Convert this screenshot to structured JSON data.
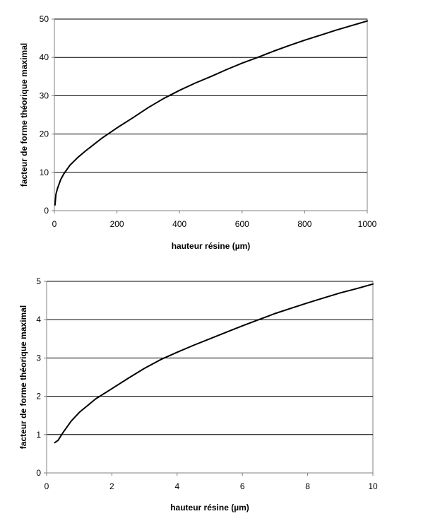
{
  "chart_data": [
    {
      "type": "line",
      "title": "",
      "xlabel": "hauteur résine (µm)",
      "ylabel": "facteur de forme théorique maximal",
      "xlim": [
        0,
        1000
      ],
      "ylim": [
        0,
        50
      ],
      "xticks": [
        0,
        200,
        400,
        600,
        800,
        1000
      ],
      "yticks": [
        0,
        10,
        20,
        30,
        40,
        50
      ],
      "grid": "horizontal",
      "legend": "none",
      "series": [
        {
          "x": [
            2,
            5,
            10,
            20,
            30,
            50,
            75,
            100,
            150,
            200,
            250,
            300,
            350,
            400,
            450,
            500,
            550,
            600,
            650,
            700,
            750,
            800,
            850,
            900,
            950,
            1000
          ],
          "y": [
            1.5,
            4.3,
            5.8,
            8.1,
            9.6,
            11.9,
            13.9,
            15.6,
            18.8,
            21.6,
            24.2,
            26.9,
            29.3,
            31.4,
            33.3,
            35.0,
            36.8,
            38.5,
            40.0,
            41.6,
            43.1,
            44.5,
            45.8,
            47.1,
            48.3,
            49.5
          ]
        }
      ],
      "color": "#000000"
    },
    {
      "type": "line",
      "title": "",
      "xlabel": "hauteur résine (µm)",
      "ylabel": "facteur de forme théorique maximal",
      "xlim": [
        0,
        10
      ],
      "ylim": [
        0,
        5
      ],
      "xticks": [
        0,
        2,
        4,
        6,
        8,
        10
      ],
      "yticks": [
        0,
        1,
        2,
        3,
        4,
        5
      ],
      "grid": "horizontal",
      "legend": "none",
      "series": [
        {
          "x": [
            0.25,
            0.35,
            0.5,
            0.75,
            1.0,
            1.5,
            2.0,
            2.5,
            3.0,
            3.5,
            4.0,
            4.5,
            5.0,
            5.5,
            6.0,
            6.5,
            7.0,
            7.5,
            8.0,
            8.5,
            9.0,
            9.5,
            10.0
          ],
          "y": [
            0.79,
            0.85,
            1.05,
            1.35,
            1.58,
            1.93,
            2.2,
            2.47,
            2.73,
            2.96,
            3.15,
            3.33,
            3.5,
            3.67,
            3.84,
            4.0,
            4.16,
            4.3,
            4.44,
            4.57,
            4.7,
            4.81,
            4.93
          ]
        }
      ],
      "color": "#000000"
    }
  ]
}
